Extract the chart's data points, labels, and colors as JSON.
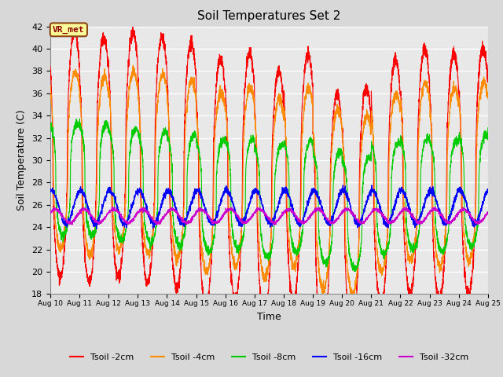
{
  "title": "Soil Temperatures Set 2",
  "xlabel": "Time",
  "ylabel": "Soil Temperature (C)",
  "ylim": [
    18,
    42
  ],
  "yticks": [
    18,
    20,
    22,
    24,
    26,
    28,
    30,
    32,
    34,
    36,
    38,
    40,
    42
  ],
  "xlim": [
    0,
    360
  ],
  "xtick_labels": [
    "Aug 10",
    "Aug 11",
    "Aug 12",
    "Aug 13",
    "Aug 14",
    "Aug 15",
    "Aug 16",
    "Aug 17",
    "Aug 18",
    "Aug 19",
    "Aug 20",
    "Aug 21",
    "Aug 22",
    "Aug 23",
    "Aug 24",
    "Aug 25"
  ],
  "xtick_positions": [
    0,
    24,
    48,
    72,
    96,
    120,
    144,
    168,
    192,
    216,
    240,
    264,
    288,
    312,
    336,
    360
  ],
  "annotation_text": "VR_met",
  "annotation_box_color": "#FFFF99",
  "annotation_border_color": "#8B4513",
  "series_colors": [
    "#FF0000",
    "#FF8C00",
    "#00CC00",
    "#0000FF",
    "#CC00CC"
  ],
  "series_labels": [
    "Tsoil -2cm",
    "Tsoil -4cm",
    "Tsoil -8cm",
    "Tsoil -16cm",
    "Tsoil -32cm"
  ],
  "bg_color": "#E8E8E8",
  "grid_color": "#FFFFFF",
  "period": 24,
  "base_2cm": 30.5,
  "amp_2cm": 11.0,
  "phase_2cm": 14.0,
  "base_4cm": 30.0,
  "amp_4cm": 8.0,
  "phase_4cm": 14.5,
  "base_8cm": 27.8,
  "amp_8cm": 5.0,
  "phase_8cm": 16.5,
  "base_16cm": 25.8,
  "amp_16cm": 1.5,
  "phase_16cm": 19.0,
  "base_32cm": 25.0,
  "amp_32cm": 0.6,
  "phase_32cm": 22.0
}
